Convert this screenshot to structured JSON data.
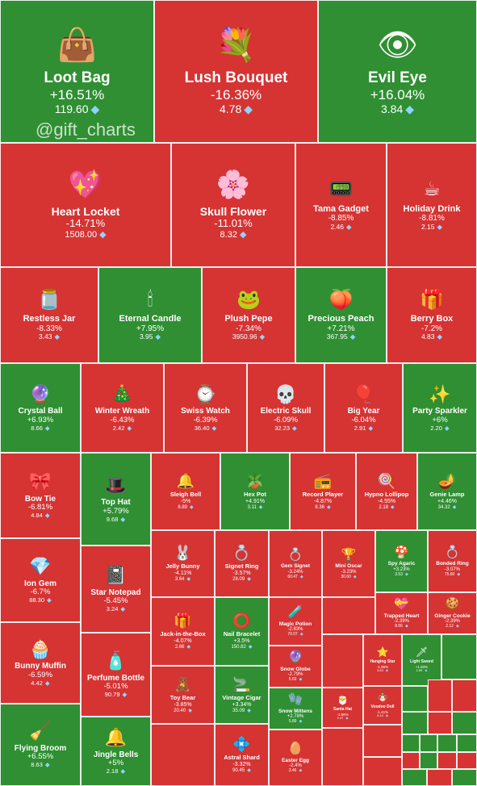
{
  "watermark": "@gift_charts",
  "colors": {
    "up": "#2f8f32",
    "down": "#d63333",
    "gem": "#8fd3ff"
  },
  "chart_data": {
    "type": "treemap",
    "title": "",
    "value_unit": "TON",
    "items": [
      {
        "name": "Loot Bag",
        "change": "+16.51%",
        "price": "119.60",
        "direction": "up",
        "icon": "loot-bag-icon"
      },
      {
        "name": "Lush Bouquet",
        "change": "-16.36%",
        "price": "4.78",
        "direction": "down",
        "icon": "lush-bouquet-icon"
      },
      {
        "name": "Evil Eye",
        "change": "+16.04%",
        "price": "3.84",
        "direction": "up",
        "icon": "evil-eye-icon"
      },
      {
        "name": "Heart Locket",
        "change": "-14.71%",
        "price": "1508.00",
        "direction": "down",
        "icon": "heart-locket-icon"
      },
      {
        "name": "Skull Flower",
        "change": "-11.01%",
        "price": "8.32",
        "direction": "down",
        "icon": "skull-flower-icon"
      },
      {
        "name": "Tama Gadget",
        "change": "-8.85%",
        "price": "2.46",
        "direction": "down",
        "icon": "tama-gadget-icon"
      },
      {
        "name": "Holiday Drink",
        "change": "-8.81%",
        "price": "2.15",
        "direction": "down",
        "icon": "holiday-drink-icon"
      },
      {
        "name": "Restless Jar",
        "change": "-8.33%",
        "price": "3.43",
        "direction": "down",
        "icon": "restless-jar-icon"
      },
      {
        "name": "Eternal Candle",
        "change": "+7.95%",
        "price": "3.95",
        "direction": "up",
        "icon": "eternal-candle-icon"
      },
      {
        "name": "Plush Pepe",
        "change": "-7.34%",
        "price": "3950.96",
        "direction": "down",
        "icon": "plush-pepe-icon"
      },
      {
        "name": "Precious Peach",
        "change": "+7.21%",
        "price": "367.95",
        "direction": "up",
        "icon": "precious-peach-icon"
      },
      {
        "name": "Berry Box",
        "change": "-7.2%",
        "price": "4.83",
        "direction": "down",
        "icon": "berry-box-icon"
      },
      {
        "name": "Crystal Ball",
        "change": "+6.93%",
        "price": "8.66",
        "direction": "up",
        "icon": "crystal-ball-icon"
      },
      {
        "name": "Winter Wreath",
        "change": "-6.43%",
        "price": "2.42",
        "direction": "down",
        "icon": "winter-wreath-icon"
      },
      {
        "name": "Swiss Watch",
        "change": "-6.39%",
        "price": "36.40",
        "direction": "down",
        "icon": "swiss-watch-icon"
      },
      {
        "name": "Electric Skull",
        "change": "-6.09%",
        "price": "32.23",
        "direction": "down",
        "icon": "electric-skull-icon"
      },
      {
        "name": "Big Year",
        "change": "-6.04%",
        "price": "2.91",
        "direction": "down",
        "icon": "big-year-icon"
      },
      {
        "name": "Party Sparkler",
        "change": "+6%",
        "price": "2.20",
        "direction": "up",
        "icon": "party-sparkler-icon"
      },
      {
        "name": "Bow Tie",
        "change": "-6.81%",
        "price": "4.84",
        "direction": "down",
        "icon": "bow-tie-icon"
      },
      {
        "name": "Top Hat",
        "change": "+5.79%",
        "price": "9.68",
        "direction": "up",
        "icon": "top-hat-icon"
      },
      {
        "name": "Sleigh Bell",
        "change": "-5%",
        "price": "8.89",
        "direction": "down",
        "icon": "sleigh-bell-icon"
      },
      {
        "name": "Hex Pot",
        "change": "+4.91%",
        "price": "3.11",
        "direction": "up",
        "icon": "hex-pot-icon"
      },
      {
        "name": "Record Player",
        "change": "-4.87%",
        "price": "8.36",
        "direction": "down",
        "icon": "record-player-icon"
      },
      {
        "name": "Hypno Lollipop",
        "change": "-4.55%",
        "price": "2.18",
        "direction": "down",
        "icon": "hypno-lollipop-icon"
      },
      {
        "name": "Genie Lamp",
        "change": "+4.46%",
        "price": "34.32",
        "direction": "up",
        "icon": "genie-lamp-icon"
      },
      {
        "name": "Ion Gem",
        "change": "-6.7%",
        "price": "88.30",
        "direction": "down",
        "icon": "ion-gem-icon"
      },
      {
        "name": "Star Notepad",
        "change": "-5.45%",
        "price": "3.24",
        "direction": "down",
        "icon": "star-notepad-icon"
      },
      {
        "name": "Jelly Bunny",
        "change": "-4.11%",
        "price": "3.64",
        "direction": "down",
        "icon": "jelly-bunny-icon"
      },
      {
        "name": "Signet Ring",
        "change": "-3.57%",
        "price": "28.09",
        "direction": "down",
        "icon": "signet-ring-icon"
      },
      {
        "name": "Gem Signet",
        "change": "-3.24%",
        "price": "60.47",
        "direction": "down",
        "icon": "gem-signet-icon"
      },
      {
        "name": "Mini Oscar",
        "change": "-3.23%",
        "price": "30.60",
        "direction": "down",
        "icon": "mini-oscar-icon"
      },
      {
        "name": "Spy Agaric",
        "change": "+3.23%",
        "price": "3.53",
        "direction": "up",
        "icon": "spy-agaric-icon"
      },
      {
        "name": "Bonded Ring",
        "change": "-3.07%",
        "price": "75.60",
        "direction": "down",
        "icon": "bonded-ring-icon"
      },
      {
        "name": "Jack-in-the-Box",
        "change": "-4.07%",
        "price": "2.66",
        "direction": "down",
        "icon": "jack-in-the-box-icon"
      },
      {
        "name": "Nail Bracelet",
        "change": "+3.5%",
        "price": "150.82",
        "direction": "up",
        "icon": "nail-bracelet-icon"
      },
      {
        "name": "Magic Potion",
        "change": "-2.83%",
        "price": "70.07",
        "direction": "down",
        "icon": "magic-potion-icon"
      },
      {
        "name": "Trapped Heart",
        "change": "-2.39%",
        "price": "8.66",
        "direction": "down",
        "icon": "trapped-heart-icon"
      },
      {
        "name": "Ginger Cookie",
        "change": "-2.39%",
        "price": "2.12",
        "direction": "down",
        "icon": "ginger-cookie-icon"
      },
      {
        "name": "Bunny Muffin",
        "change": "-6.59%",
        "price": "4.42",
        "direction": "down",
        "icon": "bunny-muffin-icon"
      },
      {
        "name": "Perfume Bottle",
        "change": "-5.01%",
        "price": "90.79",
        "direction": "down",
        "icon": "perfume-bottle-icon"
      },
      {
        "name": "Toy Bear",
        "change": "-3.85%",
        "price": "20.40",
        "direction": "down",
        "icon": "toy-bear-icon"
      },
      {
        "name": "Vintage Cigar",
        "change": "+3.34%",
        "price": "35.09",
        "direction": "up",
        "icon": "vintage-cigar-icon"
      },
      {
        "name": "Snow Globe",
        "change": "-2.79%",
        "price": "5.69",
        "direction": "down",
        "icon": "snow-globe-icon"
      },
      {
        "name": "Snow Mittens",
        "change": "+2.78%",
        "price": "5.89",
        "direction": "up",
        "icon": "snow-mittens-icon"
      },
      {
        "name": "Hanging Star",
        "change": "-1.96%",
        "price": "3.63",
        "direction": "down",
        "icon": "hanging-star-icon"
      },
      {
        "name": "Light Sword",
        "change": "+1.93%",
        "price": "2.59",
        "direction": "up",
        "icon": "light-sword-icon"
      },
      {
        "name": "Santa Hat",
        "change": "-1.86%",
        "price": "2.47",
        "direction": "down",
        "icon": "santa-hat-icon"
      },
      {
        "name": "Voodoo Doll",
        "change": "-1.41%",
        "price": "9.14",
        "direction": "down",
        "icon": "voodoo-doll-icon"
      },
      {
        "name": "Flying Broom",
        "change": "+6.55%",
        "price": "8.63",
        "direction": "up",
        "icon": "flying-broom-icon"
      },
      {
        "name": "Jingle Bells",
        "change": "+5%",
        "price": "2.18",
        "direction": "up",
        "icon": "jingle-bells-icon"
      },
      {
        "name": "Astral Shard",
        "change": "-3.32%",
        "price": "90.45",
        "direction": "down",
        "icon": "astral-shard-icon"
      },
      {
        "name": "Easter Egg",
        "change": "-2.4%",
        "price": "3.46",
        "direction": "down",
        "icon": "easter-egg-icon"
      }
    ],
    "unlabeled_tiles": [
      {
        "direction": "down"
      },
      {
        "direction": "down"
      },
      {
        "direction": "down"
      },
      {
        "direction": "down"
      },
      {
        "direction": "down"
      },
      {
        "direction": "up"
      },
      {
        "direction": "up"
      },
      {
        "direction": "down"
      },
      {
        "direction": "down"
      },
      {
        "direction": "down"
      },
      {
        "direction": "up"
      },
      {
        "direction": "down"
      },
      {
        "direction": "up"
      },
      {
        "direction": "up"
      },
      {
        "direction": "up"
      },
      {
        "direction": "up"
      },
      {
        "direction": "up"
      },
      {
        "direction": "down"
      },
      {
        "direction": "up"
      },
      {
        "direction": "down"
      },
      {
        "direction": "down"
      },
      {
        "direction": "up"
      },
      {
        "direction": "down"
      },
      {
        "direction": "up"
      }
    ]
  }
}
